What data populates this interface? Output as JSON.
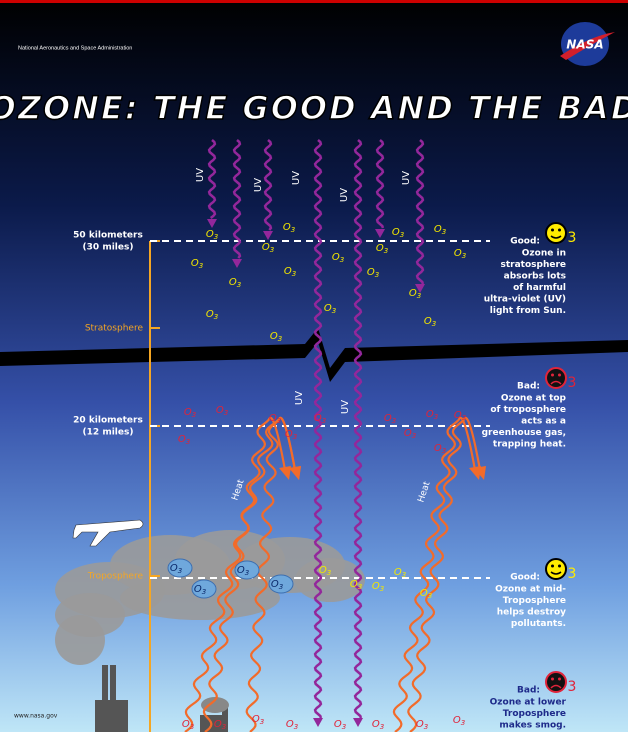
{
  "header": {
    "agency": "National Aeronautics and Space Administration",
    "logo": "NASA",
    "title": "OZONE: THE GOOD AND THE BAD"
  },
  "ozone": {
    "symbol": "O",
    "subscript": "3"
  },
  "uv_label": "UV",
  "heat_label": "Heat",
  "altitudes": [
    {
      "km": "50 kilometers",
      "mi": "(30 miles)"
    },
    {
      "km": "20 kilometers",
      "mi": "(12 miles)"
    }
  ],
  "layers": [
    "Stratosphere",
    "Troposphere"
  ],
  "notes": [
    {
      "verdict": "Good:",
      "lines": [
        "Ozone in",
        "stratosphere",
        "absorbs lots",
        "of harmful",
        "ultra-violet (UV)",
        "light from Sun."
      ]
    },
    {
      "verdict": "Bad:",
      "lines": [
        "Ozone at top",
        "of troposphere",
        "acts as a",
        "greenhouse gas,",
        "trapping heat."
      ]
    },
    {
      "verdict": "Good:",
      "lines": [
        "Ozone at mid-",
        "Troposphere",
        "helps destroy",
        "pollutants."
      ]
    },
    {
      "verdict": "Bad:",
      "lines": [
        "Ozone at lower",
        "Troposphere",
        "makes smog."
      ]
    }
  ],
  "footer": {
    "url": "www.nasa.gov"
  }
}
